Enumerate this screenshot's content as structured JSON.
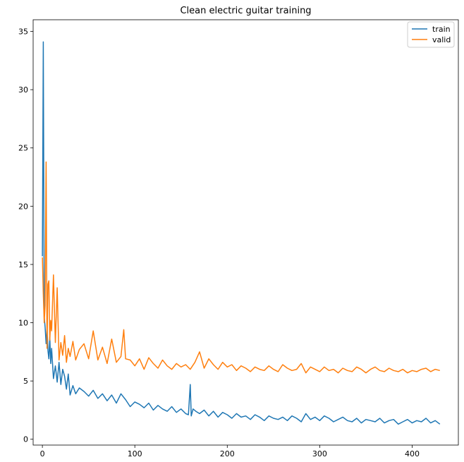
{
  "chart_data": {
    "type": "line",
    "title": "Clean electric guitar training",
    "xlabel": "",
    "ylabel": "",
    "xlim": [
      -10,
      450
    ],
    "ylim": [
      -0.5,
      36
    ],
    "xticks": [
      0,
      100,
      200,
      300,
      400
    ],
    "yticks": [
      0,
      5,
      10,
      15,
      20,
      25,
      30,
      35
    ],
    "grid": false,
    "legend_position": "top-right",
    "series": [
      {
        "name": "train",
        "color": "#1f77b4",
        "x": [
          0,
          1,
          2,
          3,
          4,
          5,
          6,
          7,
          8,
          9,
          10,
          12,
          14,
          16,
          18,
          20,
          22,
          24,
          26,
          28,
          30,
          33,
          36,
          40,
          45,
          50,
          55,
          60,
          65,
          70,
          75,
          80,
          85,
          90,
          95,
          100,
          105,
          110,
          115,
          120,
          125,
          130,
          135,
          140,
          145,
          150,
          155,
          158,
          160,
          161,
          163,
          166,
          170,
          175,
          180,
          185,
          190,
          195,
          200,
          205,
          210,
          215,
          220,
          225,
          230,
          235,
          240,
          245,
          250,
          255,
          260,
          265,
          270,
          275,
          280,
          285,
          290,
          295,
          300,
          305,
          310,
          315,
          320,
          325,
          330,
          335,
          340,
          345,
          350,
          355,
          360,
          365,
          370,
          375,
          380,
          385,
          390,
          395,
          400,
          405,
          410,
          415,
          420,
          425,
          430
        ],
        "y": [
          15.7,
          34.1,
          10.5,
          9.6,
          8.2,
          9.5,
          7.6,
          6.9,
          8.8,
          6.5,
          7.8,
          5.2,
          6.3,
          4.9,
          6.6,
          4.7,
          6.0,
          5.4,
          4.3,
          5.6,
          3.8,
          4.6,
          3.9,
          4.4,
          4.1,
          3.7,
          4.2,
          3.5,
          3.9,
          3.3,
          3.8,
          3.1,
          3.9,
          3.4,
          2.8,
          3.2,
          3.0,
          2.7,
          3.1,
          2.5,
          2.9,
          2.6,
          2.4,
          2.8,
          2.3,
          2.6,
          2.2,
          2.1,
          4.7,
          2.0,
          2.6,
          2.4,
          2.2,
          2.5,
          2.0,
          2.4,
          1.9,
          2.3,
          2.1,
          1.8,
          2.2,
          1.9,
          2.0,
          1.7,
          2.1,
          1.9,
          1.6,
          2.0,
          1.8,
          1.7,
          1.9,
          1.6,
          2.0,
          1.8,
          1.5,
          2.2,
          1.7,
          1.9,
          1.6,
          2.0,
          1.8,
          1.5,
          1.7,
          1.9,
          1.6,
          1.5,
          1.8,
          1.4,
          1.7,
          1.6,
          1.5,
          1.8,
          1.4,
          1.6,
          1.7,
          1.3,
          1.5,
          1.7,
          1.4,
          1.6,
          1.5,
          1.8,
          1.4,
          1.6,
          1.3
        ]
      },
      {
        "name": "valid",
        "color": "#ff7f0e",
        "x": [
          0,
          1,
          2,
          3,
          4,
          5,
          6,
          7,
          8,
          9,
          10,
          12,
          14,
          16,
          18,
          20,
          22,
          24,
          26,
          28,
          30,
          33,
          36,
          40,
          45,
          50,
          55,
          60,
          65,
          70,
          75,
          80,
          85,
          88,
          90,
          95,
          100,
          105,
          110,
          115,
          120,
          125,
          130,
          135,
          140,
          145,
          150,
          155,
          160,
          165,
          170,
          175,
          180,
          185,
          190,
          195,
          200,
          205,
          210,
          215,
          220,
          225,
          230,
          235,
          240,
          245,
          250,
          255,
          260,
          265,
          270,
          275,
          280,
          285,
          290,
          295,
          300,
          305,
          310,
          315,
          320,
          325,
          330,
          335,
          340,
          345,
          350,
          355,
          360,
          365,
          370,
          375,
          380,
          385,
          390,
          395,
          400,
          405,
          410,
          415,
          420,
          425,
          430
        ],
        "y": [
          15.6,
          12.5,
          10.0,
          11.5,
          23.8,
          7.8,
          13.3,
          13.6,
          8.5,
          10.2,
          9.3,
          14.1,
          8.3,
          13.0,
          6.8,
          8.3,
          7.2,
          8.9,
          6.6,
          7.8,
          7.1,
          8.4,
          6.8,
          7.7,
          8.2,
          6.9,
          9.3,
          6.8,
          7.9,
          6.5,
          8.6,
          6.6,
          7.1,
          9.4,
          6.9,
          6.8,
          6.3,
          6.9,
          6.0,
          7.0,
          6.5,
          6.1,
          6.8,
          6.3,
          6.0,
          6.5,
          6.2,
          6.4,
          6.0,
          6.6,
          7.5,
          6.1,
          6.9,
          6.4,
          6.0,
          6.6,
          6.2,
          6.4,
          5.9,
          6.3,
          6.1,
          5.8,
          6.2,
          6.0,
          5.9,
          6.3,
          6.0,
          5.8,
          6.4,
          6.1,
          5.9,
          6.0,
          6.5,
          5.7,
          6.2,
          6.0,
          5.8,
          6.2,
          5.9,
          6.0,
          5.7,
          6.1,
          5.9,
          5.8,
          6.2,
          6.0,
          5.7,
          6.0,
          6.2,
          5.9,
          5.8,
          6.1,
          5.9,
          5.8,
          6.0,
          5.7,
          5.9,
          5.8,
          6.0,
          6.1,
          5.8,
          6.0,
          5.9
        ]
      }
    ]
  }
}
